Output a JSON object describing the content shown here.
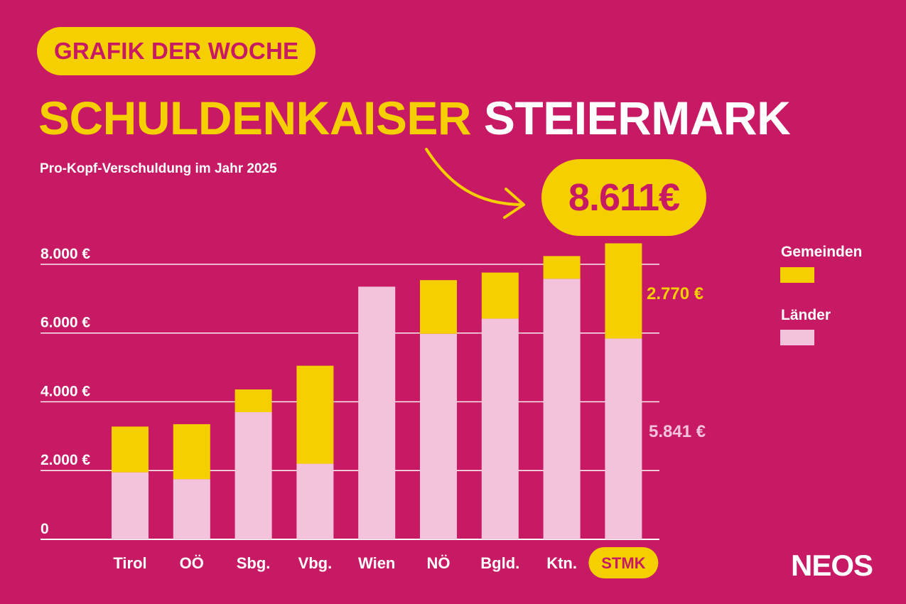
{
  "badge": "GRAFIK DER WOCHE",
  "headline": {
    "part1": "SCHULDENKAISER",
    "part2": "STEIERMARK"
  },
  "subtitle": "Pro-Kopf-Verschuldung im Jahr 2025",
  "callout": "8.611€",
  "brand": "NEOS",
  "colors": {
    "background": "#c81a64",
    "gemeinden": "#f5cf00",
    "laender": "#f3c3dc",
    "text": "#ffffff"
  },
  "chart_data": {
    "type": "bar",
    "stacked": true,
    "categories": [
      "Tirol",
      "OÖ",
      "Sbg.",
      "Vbg.",
      "Wien",
      "NÖ",
      "Bgld.",
      "Ktn.",
      "STMK"
    ],
    "highlight_category": "STMK",
    "series": [
      {
        "name": "Länder",
        "color": "#f3c3dc",
        "values": [
          1950,
          1750,
          3700,
          2200,
          7350,
          5980,
          6420,
          7580,
          5841
        ]
      },
      {
        "name": "Gemeinden",
        "color": "#f5cf00",
        "values": [
          1330,
          1600,
          660,
          2850,
          0,
          1560,
          1340,
          660,
          2770
        ]
      }
    ],
    "y_ticks": [
      "0",
      "2.000 €",
      "4.000 €",
      "6.000 €",
      "8.000 €"
    ],
    "y_tick_values": [
      0,
      2000,
      4000,
      6000,
      8000
    ],
    "ylim": [
      0,
      8611
    ],
    "grid": true,
    "legend": [
      "Gemeinden",
      "Länder"
    ],
    "legend_position": "right",
    "annotations": [
      {
        "text": "2.770 €",
        "series": "Gemeinden",
        "category": "STMK"
      },
      {
        "text": "5.841 €",
        "series": "Länder",
        "category": "STMK"
      }
    ],
    "title": "Pro-Kopf-Verschuldung im Jahr 2025"
  }
}
